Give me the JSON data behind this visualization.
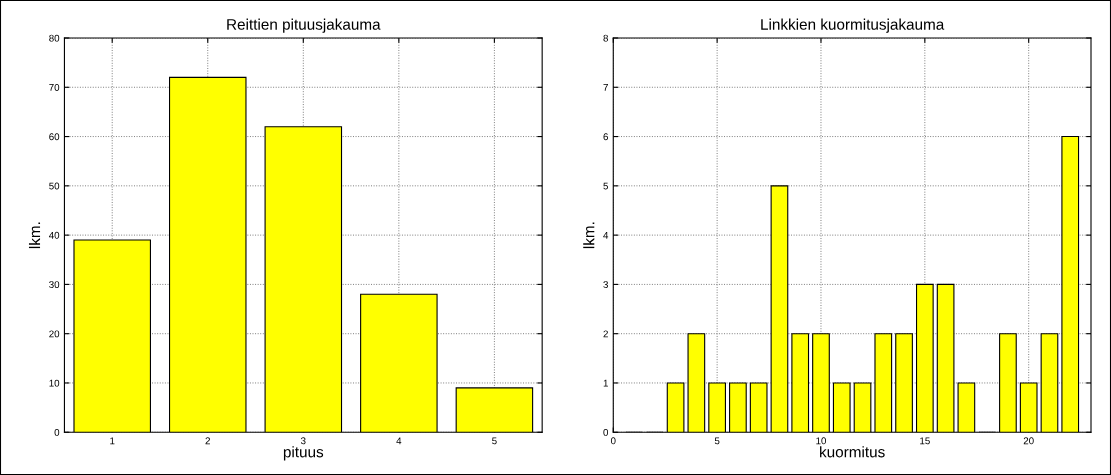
{
  "chart_data": [
    {
      "type": "bar",
      "title": "Reittien pituusjakauma",
      "xlabel": "pituus",
      "ylabel": "lkm.",
      "x": [
        1,
        2,
        3,
        4,
        5
      ],
      "values": [
        39,
        72,
        62,
        28,
        9
      ],
      "color": "#ffff00",
      "xlim": [
        0.5,
        5.5
      ],
      "xticks": [
        1,
        2,
        3,
        4,
        5
      ],
      "ylim": [
        0,
        80
      ],
      "yticks": [
        0,
        10,
        20,
        30,
        40,
        50,
        60,
        70,
        80
      ],
      "grid": true
    },
    {
      "type": "bar",
      "title": "Linkkien kuormitusjakauma",
      "xlabel": "kuormitus",
      "ylabel": "lkm.",
      "x": [
        1,
        2,
        3,
        4,
        5,
        6,
        7,
        8,
        9,
        10,
        11,
        12,
        13,
        14,
        15,
        16,
        17,
        18,
        19,
        20,
        21,
        22
      ],
      "values": [
        0,
        0,
        1,
        2,
        1,
        1,
        1,
        5,
        2,
        2,
        1,
        1,
        2,
        2,
        3,
        3,
        1,
        0,
        2,
        1,
        2,
        6
      ],
      "color": "#ffff00",
      "xlim": [
        0,
        23
      ],
      "xticks": [
        0,
        5,
        10,
        15,
        20
      ],
      "ylim": [
        0,
        8
      ],
      "yticks": [
        0,
        1,
        2,
        3,
        4,
        5,
        6,
        7,
        8
      ],
      "grid": true
    }
  ]
}
